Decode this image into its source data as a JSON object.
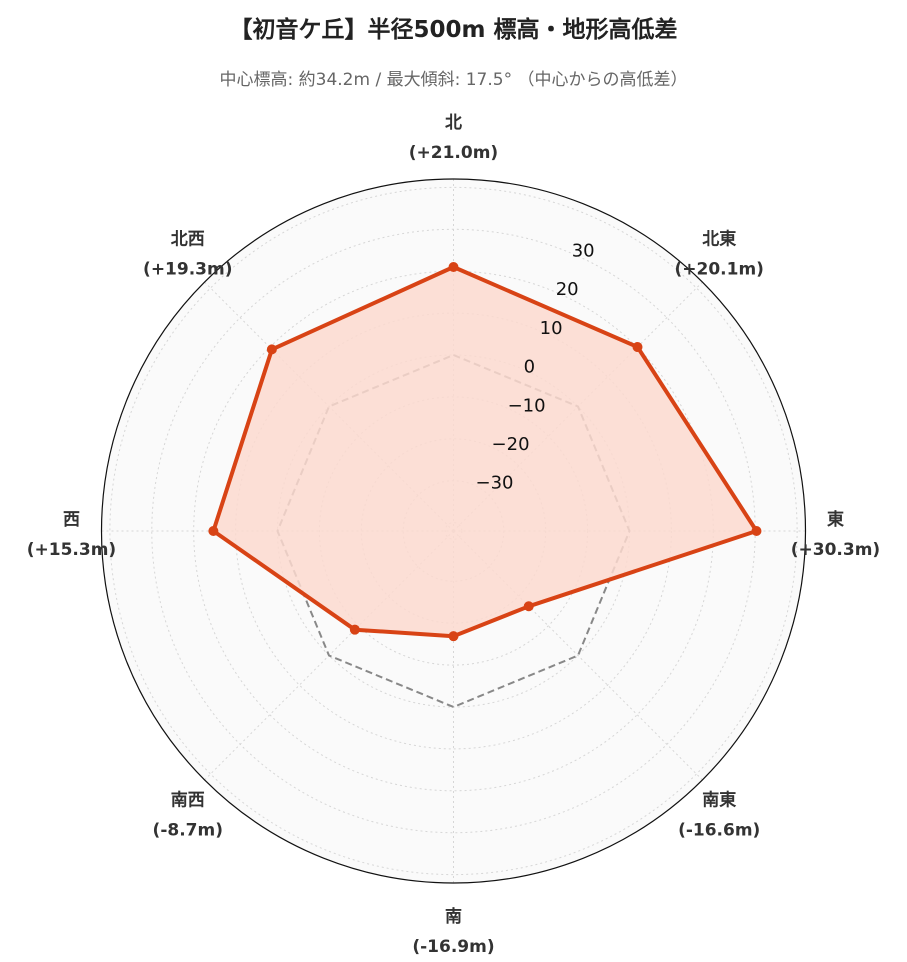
{
  "chart_data": {
    "type": "radar",
    "title": "【初音ケ丘】半径500m 標高・地形高低差",
    "subtitle": "中心標高: 約34.2m / 最大傾斜: 17.5° （中心からの高低差）",
    "categories": [
      "北",
      "北東",
      "東",
      "南東",
      "南",
      "南西",
      "西",
      "北西"
    ],
    "value_labels": [
      "(+21.0m)",
      "(+20.1m)",
      "(+30.3m)",
      "(-16.6m)",
      "(-16.9m)",
      "(-8.7m)",
      "(+15.3m)",
      "(+19.3m)"
    ],
    "series": [
      {
        "values": [
          21.0,
          20.1,
          30.3,
          -16.6,
          -16.9,
          -8.7,
          15.3,
          19.3
        ]
      },
      {
        "values": [
          0,
          0,
          0,
          0,
          0,
          0,
          0,
          0
        ]
      }
    ],
    "rlim": [
      -42,
      42
    ],
    "ticks": [
      30,
      20,
      10,
      0,
      -10,
      -20,
      -30
    ],
    "tick_labels": [
      "30",
      "20",
      "10",
      "0",
      "−10",
      "−20",
      "−30"
    ],
    "grid": true,
    "colors": {
      "series_line": "#d84315",
      "series_fill": "#fbd9cf",
      "reference_line": "#888888",
      "background": "#fafafa",
      "grid": "#d6d6d6"
    }
  }
}
